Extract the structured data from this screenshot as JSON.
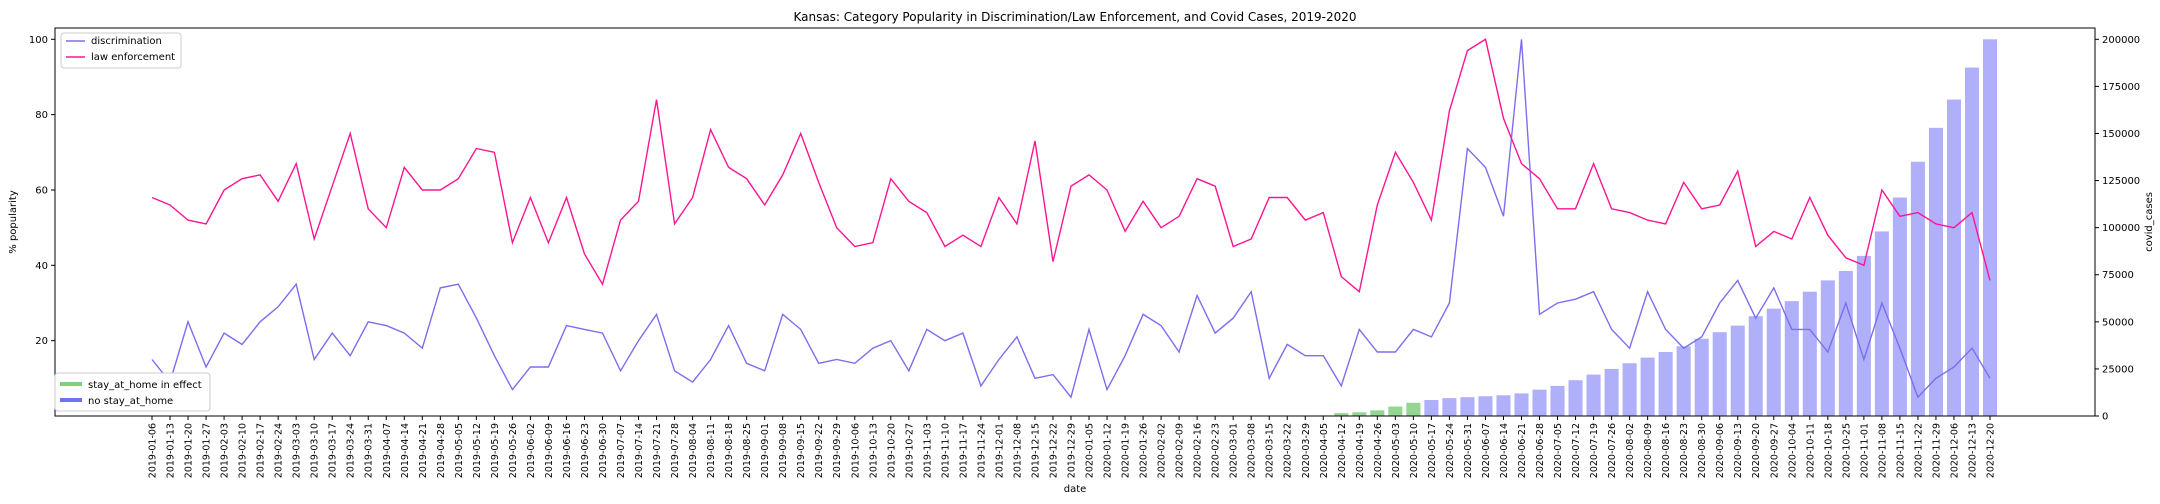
{
  "chart_data": {
    "type": "line",
    "title": "Kansas: Category Popularity in Discrimination/Law Enforcement, and Covid Cases, 2019-2020",
    "xlabel": "date",
    "ylabel": "% popularity",
    "y2label": "covid_cases",
    "ylim": [
      0,
      103
    ],
    "y_ticks": [
      20,
      40,
      60,
      80,
      100
    ],
    "y2lim": [
      0,
      206000
    ],
    "y2_ticks": [
      0,
      25000,
      50000,
      75000,
      100000,
      125000,
      150000,
      175000,
      200000
    ],
    "grid": false,
    "legend_top": {
      "position": "upper left",
      "entries": [
        "discrimination",
        "law enforcement"
      ]
    },
    "legend_bottom": {
      "position": "lower left",
      "entries": [
        "stay_at_home in effect",
        "no stay_at_home"
      ]
    },
    "colors": {
      "discrimination": "#7b6ef0",
      "law_enforcement": "#ff1493",
      "stay_at_home": "#7fcf7f",
      "no_stay_at_home": "#7070f5"
    },
    "x": [
      "2019-01-06",
      "2019-01-13",
      "2019-01-20",
      "2019-01-27",
      "2019-02-03",
      "2019-02-10",
      "2019-02-17",
      "2019-02-24",
      "2019-03-03",
      "2019-03-10",
      "2019-03-17",
      "2019-03-24",
      "2019-03-31",
      "2019-04-07",
      "2019-04-14",
      "2019-04-21",
      "2019-04-28",
      "2019-05-05",
      "2019-05-12",
      "2019-05-19",
      "2019-05-26",
      "2019-06-02",
      "2019-06-09",
      "2019-06-16",
      "2019-06-23",
      "2019-06-30",
      "2019-07-07",
      "2019-07-14",
      "2019-07-21",
      "2019-07-28",
      "2019-08-04",
      "2019-08-11",
      "2019-08-18",
      "2019-08-25",
      "2019-09-01",
      "2019-09-08",
      "2019-09-15",
      "2019-09-22",
      "2019-09-29",
      "2019-10-06",
      "2019-10-13",
      "2019-10-20",
      "2019-10-27",
      "2019-11-03",
      "2019-11-10",
      "2019-11-17",
      "2019-11-24",
      "2019-12-01",
      "2019-12-08",
      "2019-12-15",
      "2019-12-22",
      "2019-12-29",
      "2020-01-05",
      "2020-01-12",
      "2020-01-19",
      "2020-01-26",
      "2020-02-02",
      "2020-02-09",
      "2020-02-16",
      "2020-02-23",
      "2020-03-01",
      "2020-03-08",
      "2020-03-15",
      "2020-03-22",
      "2020-03-29",
      "2020-04-05",
      "2020-04-12",
      "2020-04-19",
      "2020-04-26",
      "2020-05-03",
      "2020-05-10",
      "2020-05-17",
      "2020-05-24",
      "2020-05-31",
      "2020-06-07",
      "2020-06-14",
      "2020-06-21",
      "2020-06-28",
      "2020-07-05",
      "2020-07-12",
      "2020-07-19",
      "2020-07-26",
      "2020-08-02",
      "2020-08-09",
      "2020-08-16",
      "2020-08-23",
      "2020-08-30",
      "2020-09-06",
      "2020-09-13",
      "2020-09-20",
      "2020-09-27",
      "2020-10-04",
      "2020-10-11",
      "2020-10-18",
      "2020-10-25",
      "2020-11-01",
      "2020-11-08",
      "2020-11-15",
      "2020-11-22",
      "2020-11-29",
      "2020-12-06",
      "2020-12-13",
      "2020-12-20"
    ],
    "series": [
      {
        "name": "discrimination",
        "axis": "left",
        "values": [
          15,
          9,
          25,
          13,
          22,
          19,
          25,
          29,
          35,
          15,
          22,
          16,
          25,
          24,
          22,
          18,
          34,
          35,
          26,
          16,
          7,
          13,
          13,
          24,
          23,
          22,
          12,
          20,
          27,
          12,
          9,
          15,
          24,
          14,
          12,
          27,
          23,
          14,
          15,
          14,
          18,
          20,
          12,
          23,
          20,
          22,
          8,
          15,
          21,
          10,
          11,
          5,
          23,
          7,
          16,
          27,
          24,
          17,
          32,
          22,
          26,
          33,
          10,
          19,
          16,
          16,
          8,
          23,
          17,
          17,
          23,
          21,
          30,
          71,
          66,
          53,
          100,
          27,
          30,
          31,
          33,
          23,
          18,
          33,
          23,
          18,
          21,
          30,
          36,
          26,
          34,
          23,
          23,
          17,
          30,
          15,
          30,
          18,
          5,
          10,
          13,
          18,
          10
        ]
      },
      {
        "name": "law enforcement",
        "axis": "left",
        "values": [
          58,
          56,
          52,
          51,
          60,
          63,
          64,
          57,
          67,
          47,
          61,
          75,
          55,
          50,
          66,
          60,
          60,
          63,
          71,
          70,
          46,
          58,
          46,
          58,
          43,
          35,
          52,
          57,
          84,
          51,
          58,
          76,
          66,
          63,
          56,
          64,
          75,
          62,
          50,
          45,
          46,
          63,
          57,
          54,
          45,
          48,
          45,
          58,
          51,
          73,
          41,
          61,
          64,
          60,
          49,
          57,
          50,
          53,
          63,
          61,
          45,
          47,
          58,
          58,
          52,
          54,
          37,
          33,
          56,
          70,
          62,
          52,
          81,
          97,
          100,
          79,
          67,
          63,
          55,
          55,
          67,
          55,
          54,
          52,
          51,
          62,
          55,
          56,
          65,
          45,
          49,
          47,
          58,
          48,
          42,
          40,
          60,
          53,
          54,
          51,
          50,
          54,
          36
        ]
      }
    ],
    "bars": {
      "name": "covid_cases",
      "axis": "right",
      "values": [
        0,
        0,
        0,
        0,
        0,
        0,
        0,
        0,
        0,
        0,
        0,
        0,
        0,
        0,
        0,
        0,
        0,
        0,
        0,
        0,
        0,
        0,
        0,
        0,
        0,
        0,
        0,
        0,
        0,
        0,
        0,
        0,
        0,
        0,
        0,
        0,
        0,
        0,
        0,
        0,
        0,
        0,
        0,
        0,
        0,
        0,
        0,
        0,
        0,
        0,
        0,
        0,
        0,
        0,
        0,
        0,
        0,
        0,
        0,
        0,
        0,
        0,
        0,
        0,
        0,
        300,
        1500,
        2000,
        3000,
        5000,
        7000,
        8500,
        9500,
        10000,
        10500,
        11000,
        12000,
        14000,
        16000,
        19000,
        22000,
        25000,
        28000,
        31000,
        34000,
        37000,
        41000,
        44500,
        48000,
        53000,
        57000,
        61000,
        66000,
        72000,
        77000,
        85000,
        98000,
        116000,
        135000,
        153000,
        168000,
        185000,
        200000
      ],
      "stay_at_home": [
        false,
        false,
        false,
        false,
        false,
        false,
        false,
        false,
        false,
        false,
        false,
        false,
        false,
        false,
        false,
        false,
        false,
        false,
        false,
        false,
        false,
        false,
        false,
        false,
        false,
        false,
        false,
        false,
        false,
        false,
        false,
        false,
        false,
        false,
        false,
        false,
        false,
        false,
        false,
        false,
        false,
        false,
        false,
        false,
        false,
        false,
        false,
        false,
        false,
        false,
        false,
        false,
        false,
        false,
        false,
        false,
        false,
        false,
        false,
        false,
        false,
        false,
        false,
        false,
        false,
        true,
        true,
        true,
        true,
        true,
        true,
        false,
        false,
        false,
        false,
        false,
        false,
        false,
        false,
        false,
        false,
        false,
        false,
        false,
        false,
        false,
        false,
        false,
        false,
        false,
        false,
        false,
        false,
        false,
        false,
        false,
        false,
        false,
        false,
        false,
        false,
        false,
        false
      ]
    }
  }
}
